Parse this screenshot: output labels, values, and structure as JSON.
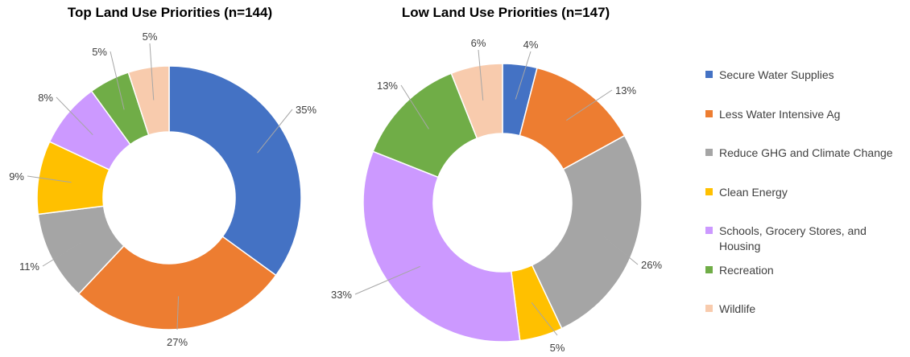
{
  "chart_data": [
    {
      "type": "pie",
      "donut": true,
      "title": "Top Land Use Priorities (n=144)",
      "categories": [
        "Secure Water Supplies",
        "Less Water Intensive Ag",
        "Reduce GHG and Climate Change",
        "Clean Energy",
        "Schools, Grocery Stores, and Housing",
        "Recreation",
        "Wildlife"
      ],
      "values": [
        35,
        27,
        11,
        9,
        8,
        5,
        5
      ],
      "value_labels": [
        "35%",
        "27%",
        "11%",
        "9%",
        "8%",
        "5%",
        "5%"
      ]
    },
    {
      "type": "pie",
      "donut": true,
      "title": "Low Land Use Priorities (n=147)",
      "categories": [
        "Secure Water Supplies",
        "Less Water Intensive Ag",
        "Reduce GHG and Climate Change",
        "Clean Energy",
        "Schools, Grocery Stores, and Housing",
        "Recreation",
        "Wildlife"
      ],
      "values": [
        4,
        13,
        26,
        5,
        33,
        13,
        6
      ],
      "value_labels": [
        "4%",
        "13%",
        "26%",
        "5%",
        "33%",
        "13%",
        "6%"
      ]
    }
  ],
  "legend": {
    "placement": "right",
    "items": [
      {
        "label": "Secure Water Supplies",
        "color": "#4472c4"
      },
      {
        "label": "Less Water Intensive Ag",
        "color": "#ed7d31"
      },
      {
        "label": "Reduce GHG and Climate Change",
        "color": "#a5a5a5"
      },
      {
        "label": "Clean Energy",
        "color": "#ffc000"
      },
      {
        "label": "Schools, Grocery Stores, and Housing",
        "color": "#cc99ff"
      },
      {
        "label": "Recreation",
        "color": "#70ad47"
      },
      {
        "label": "Wildlife",
        "color": "#f8cbad"
      }
    ]
  },
  "colors": {
    "label_text": "#404040",
    "leader_line": "#a6a6a6",
    "slice_border": "#ffffff"
  }
}
